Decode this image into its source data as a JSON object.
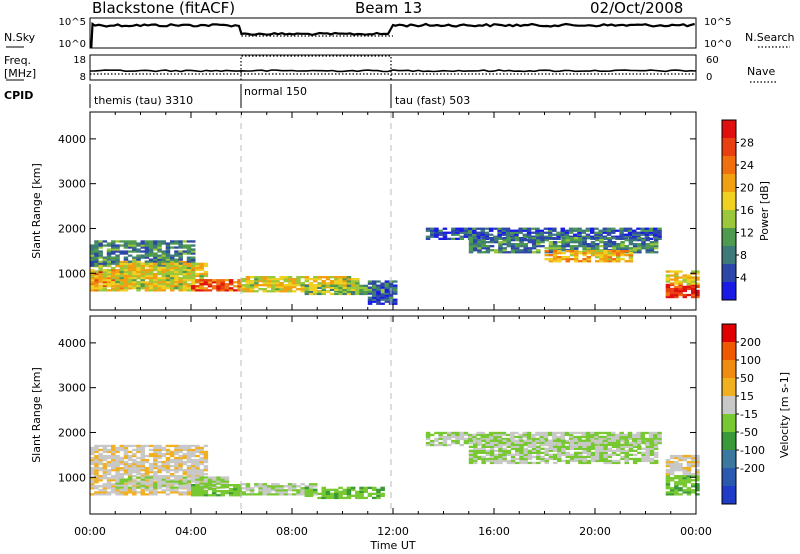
{
  "header": {
    "radar": "Blackstone (fitACF)",
    "beam": "Beam 13",
    "date": "02/Oct/2008"
  },
  "noise_panel": {
    "left_label": "N.Sky",
    "right_label": "N.Search",
    "left_ticks": [
      "10^5",
      "10^0"
    ],
    "right_ticks": [
      "10^5",
      "10^0"
    ]
  },
  "freq_panel": {
    "left_label": "Freq.",
    "left_unit": "[MHz]",
    "right_label": "Nave",
    "left_ticks": [
      "18",
      "8"
    ],
    "right_ticks": [
      "60",
      "0"
    ]
  },
  "cpid": {
    "label": "CPID",
    "segments": [
      {
        "name": "themis (tau) 3310",
        "start": 0,
        "end": 6
      },
      {
        "name": "normal 150",
        "start": 6,
        "end": 12
      },
      {
        "name": "tau (fast) 503",
        "start": 12,
        "end": 24
      }
    ]
  },
  "colors": {
    "power": [
      "#1a1ae6",
      "#2c47a8",
      "#3e7a7a",
      "#4e9a4e",
      "#9bc83a",
      "#f0d020",
      "#f0a010",
      "#f07010",
      "#e84010",
      "#e01010"
    ],
    "velocity": [
      "#e00000",
      "#ef5a00",
      "#f08c10",
      "#f0b020",
      "#c8c8c8",
      "#78c832",
      "#3a9a3a",
      "#3a78a0",
      "#2a5ab0",
      "#1e3cc8"
    ]
  },
  "chart_data": [
    {
      "type": "heatmap",
      "title": "Power",
      "xlabel": "Time UT",
      "ylabel": "Slant Range [km]",
      "xlim": [
        0,
        24
      ],
      "ylim": [
        180,
        4600
      ],
      "x_ticks": [
        "00:00",
        "04:00",
        "08:00",
        "12:00",
        "16:00",
        "20:00",
        "00:00"
      ],
      "y_ticks": [
        1000,
        2000,
        3000,
        4000
      ],
      "colorbar": {
        "label": "Power [dB]",
        "tick_labels": [
          "4",
          "8",
          "12",
          "16",
          "20",
          "24",
          "28"
        ],
        "range": [
          0,
          32
        ]
      },
      "regions": [
        {
          "t0": 0.0,
          "t1": 1.5,
          "r0": 700,
          "r1": 1050,
          "value": 26
        },
        {
          "t0": 0.0,
          "t1": 4.0,
          "r0": 600,
          "r1": 1250,
          "value": 18
        },
        {
          "t0": 0.0,
          "t1": 4.0,
          "r0": 1150,
          "r1": 1700,
          "value": 9
        },
        {
          "t0": 1.0,
          "t1": 4.5,
          "r0": 650,
          "r1": 1200,
          "value": 17
        },
        {
          "t0": 4.0,
          "t1": 6.0,
          "r0": 600,
          "r1": 850,
          "value": 26
        },
        {
          "t0": 6.0,
          "t1": 10.5,
          "r0": 580,
          "r1": 900,
          "value": 17
        },
        {
          "t0": 8.5,
          "t1": 11.5,
          "r0": 520,
          "r1": 720,
          "value": 13
        },
        {
          "t0": 11.0,
          "t1": 12.0,
          "r0": 300,
          "r1": 800,
          "value": 6
        },
        {
          "t0": 13.3,
          "t1": 22.5,
          "r0": 1750,
          "r1": 2000,
          "value": 6
        },
        {
          "t0": 15.0,
          "t1": 22.5,
          "r0": 1450,
          "r1": 1800,
          "value": 9
        },
        {
          "t0": 18.0,
          "t1": 21.5,
          "r0": 1250,
          "r1": 1500,
          "value": 20
        },
        {
          "t0": 22.8,
          "t1": 24.0,
          "r0": 450,
          "r1": 750,
          "value": 28
        },
        {
          "t0": 22.8,
          "t1": 24.0,
          "r0": 750,
          "r1": 1050,
          "value": 18
        }
      ]
    },
    {
      "type": "heatmap",
      "title": "Velocity",
      "xlabel": "Time UT",
      "ylabel": "Slant Range [km]",
      "xlim": [
        0,
        24
      ],
      "ylim": [
        180,
        4600
      ],
      "x_ticks": [
        "00:00",
        "04:00",
        "08:00",
        "12:00",
        "16:00",
        "20:00",
        "00:00"
      ],
      "y_ticks": [
        1000,
        2000,
        3000,
        4000
      ],
      "colorbar": {
        "label": "Velocity [m s-1]",
        "tick_labels": [
          "200",
          "100",
          "50",
          "15",
          "-15",
          "-50",
          "-100",
          "-200"
        ],
        "range": [
          -250,
          250
        ]
      },
      "regions": [
        {
          "t0": 0.0,
          "t1": 4.5,
          "r0": 600,
          "r1": 1700,
          "value": -40
        },
        {
          "t0": 1.0,
          "t1": 5.5,
          "r0": 750,
          "r1": 1000,
          "value": -5
        },
        {
          "t0": 4.0,
          "t1": 6.0,
          "r0": 580,
          "r1": 850,
          "value": 30
        },
        {
          "t0": 6.0,
          "t1": 9.0,
          "r0": 600,
          "r1": 850,
          "value": -5
        },
        {
          "t0": 8.5,
          "t1": 11.5,
          "r0": 520,
          "r1": 750,
          "value": 40
        },
        {
          "t0": 13.3,
          "t1": 22.5,
          "r0": 1700,
          "r1": 2000,
          "value": 0
        },
        {
          "t0": 15.0,
          "t1": 22.5,
          "r0": 1300,
          "r1": 1800,
          "value": 0
        },
        {
          "t0": 22.8,
          "t1": 24.0,
          "r0": 600,
          "r1": 1050,
          "value": 40
        },
        {
          "t0": 22.8,
          "t1": 24.0,
          "r0": 1050,
          "r1": 1500,
          "value": -40
        }
      ]
    }
  ]
}
